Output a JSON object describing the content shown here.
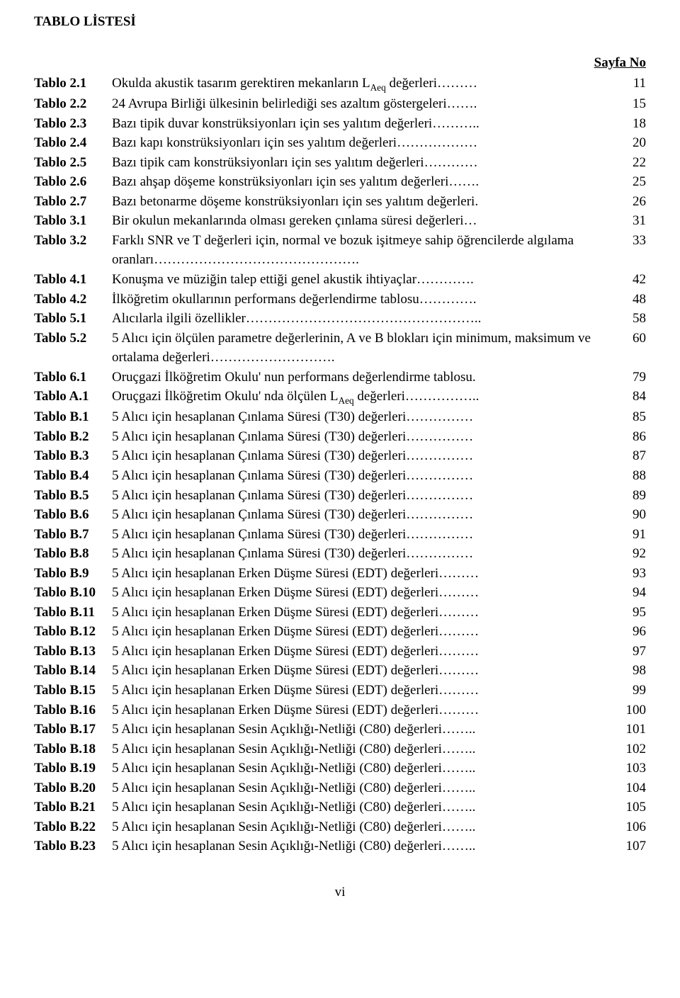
{
  "title": "TABLO LİSTESİ",
  "page_header": "Sayfa No",
  "footer": "vi",
  "entries": [
    {
      "label": "Tablo 2.1",
      "desc": "Okulda akustik tasarım gerektiren mekanların L<sub>Aeq</sub> değerleri………",
      "page": "11"
    },
    {
      "label": "Tablo 2.2",
      "desc": "24 Avrupa Birliği ülkesinin belirlediği ses azaltım göstergeleri…….",
      "page": "15"
    },
    {
      "label": "Tablo 2.3",
      "desc": "Bazı tipik duvar konstrüksiyonları için ses yalıtım değerleri………..",
      "page": "18"
    },
    {
      "label": "Tablo 2.4",
      "desc": "Bazı kapı konstrüksiyonları için ses yalıtım değerleri………………",
      "page": "20"
    },
    {
      "label": "Tablo 2.5",
      "desc": "Bazı tipik cam konstrüksiyonları için ses yalıtım değerleri…………",
      "page": "22"
    },
    {
      "label": "Tablo 2.6",
      "desc": "Bazı ahşap döşeme konstrüksiyonları için ses yalıtım değerleri…….",
      "page": "25"
    },
    {
      "label": "Tablo 2.7",
      "desc": "Bazı betonarme döşeme konstrüksiyonları için ses yalıtım değerleri.",
      "page": "26"
    },
    {
      "label": "Tablo 3.1",
      "desc": "Bir okulun mekanlarında olması gereken çınlama süresi değerleri…",
      "page": "31"
    },
    {
      "label": "Tablo 3.2",
      "desc": "Farklı SNR ve T değerleri için, normal ve bozuk işitmeye sahip öğrencilerde algılama oranları……………………………………….",
      "page": "33"
    },
    {
      "label": "Tablo 4.1",
      "desc": "Konuşma ve müziğin talep ettiği genel akustik ihtiyaçlar………….",
      "page": "42"
    },
    {
      "label": "Tablo 4.2",
      "desc": "İlköğretim okullarının performans değerlendirme tablosu………….",
      "page": "48"
    },
    {
      "label": "Tablo 5.1",
      "desc": "Alıcılarla ilgili özellikler……………………………………………..",
      "page": "58"
    },
    {
      "label": "Tablo 5.2",
      "desc": "5 Alıcı için ölçülen parametre değerlerinin, A ve B blokları için minimum, maksimum ve ortalama değerleri……………………….",
      "page": "60"
    },
    {
      "label": "Tablo 6.1",
      "desc": "Oruçgazi İlköğretim Okulu' nun performans değerlendirme tablosu.",
      "page": "79"
    },
    {
      "label": "Tablo A.1",
      "desc": "Oruçgazi İlköğretim Okulu' nda ölçülen L<sub>Aeq</sub> değerleri……………..",
      "page": "84"
    },
    {
      "label": "Tablo B.1",
      "desc": "5 Alıcı için hesaplanan Çınlama Süresi (T30) değerleri……………",
      "page": "85"
    },
    {
      "label": "Tablo B.2",
      "desc": "5 Alıcı için hesaplanan Çınlama Süresi (T30) değerleri……………",
      "page": "86"
    },
    {
      "label": "Tablo B.3",
      "desc": "5 Alıcı için hesaplanan Çınlama Süresi (T30) değerleri……………",
      "page": "87"
    },
    {
      "label": "Tablo B.4",
      "desc": "5 Alıcı için hesaplanan Çınlama Süresi (T30) değerleri……………",
      "page": "88"
    },
    {
      "label": "Tablo B.5",
      "desc": "5 Alıcı için hesaplanan Çınlama Süresi (T30) değerleri……………",
      "page": "89"
    },
    {
      "label": "Tablo B.6",
      "desc": "5 Alıcı için hesaplanan Çınlama Süresi (T30) değerleri……………",
      "page": "90"
    },
    {
      "label": "Tablo B.7",
      "desc": "5 Alıcı için hesaplanan Çınlama Süresi (T30) değerleri……………",
      "page": "91"
    },
    {
      "label": "Tablo B.8",
      "desc": "5 Alıcı için hesaplanan Çınlama Süresi (T30) değerleri……………",
      "page": "92"
    },
    {
      "label": "Tablo B.9",
      "desc": "5 Alıcı için hesaplanan Erken Düşme Süresi (EDT) değerleri………",
      "page": "93"
    },
    {
      "label": "Tablo B.10",
      "desc": "5 Alıcı için hesaplanan Erken Düşme Süresi (EDT) değerleri………",
      "page": "94"
    },
    {
      "label": "Tablo B.11",
      "desc": "5 Alıcı için hesaplanan Erken Düşme Süresi (EDT) değerleri………",
      "page": "95"
    },
    {
      "label": "Tablo B.12",
      "desc": "5 Alıcı için hesaplanan Erken Düşme Süresi (EDT) değerleri………",
      "page": "96"
    },
    {
      "label": "Tablo B.13",
      "desc": "5 Alıcı için hesaplanan Erken Düşme Süresi (EDT) değerleri………",
      "page": "97"
    },
    {
      "label": "Tablo B.14",
      "desc": "5 Alıcı için hesaplanan Erken Düşme Süresi (EDT) değerleri………",
      "page": "98"
    },
    {
      "label": "Tablo B.15",
      "desc": "5 Alıcı için hesaplanan Erken Düşme Süresi (EDT) değerleri………",
      "page": "99"
    },
    {
      "label": "Tablo B.16",
      "desc": "5 Alıcı için hesaplanan Erken Düşme Süresi (EDT) değerleri………",
      "page": "100"
    },
    {
      "label": "Tablo B.17",
      "desc": "5 Alıcı için hesaplanan Sesin Açıklığı-Netliği (C80)  değerleri……..",
      "page": "101"
    },
    {
      "label": "Tablo B.18",
      "desc": "5 Alıcı için hesaplanan Sesin Açıklığı-Netliği (C80)  değerleri……..",
      "page": "102"
    },
    {
      "label": "Tablo B.19",
      "desc": "5 Alıcı için hesaplanan Sesin Açıklığı-Netliği (C80)  değerleri……..",
      "page": "103"
    },
    {
      "label": "Tablo B.20",
      "desc": "5 Alıcı için hesaplanan Sesin Açıklığı-Netliği (C80)  değerleri……..",
      "page": "104"
    },
    {
      "label": "Tablo B.21",
      "desc": "5 Alıcı için hesaplanan Sesin Açıklığı-Netliği (C80)  değerleri……..",
      "page": "105"
    },
    {
      "label": "Tablo B.22",
      "desc": "5 Alıcı için hesaplanan Sesin Açıklığı-Netliği (C80)  değerleri……..",
      "page": "106"
    },
    {
      "label": "Tablo B.23",
      "desc": "5 Alıcı için hesaplanan Sesin Açıklığı-Netliği (C80)  değerleri……..",
      "page": "107"
    }
  ]
}
